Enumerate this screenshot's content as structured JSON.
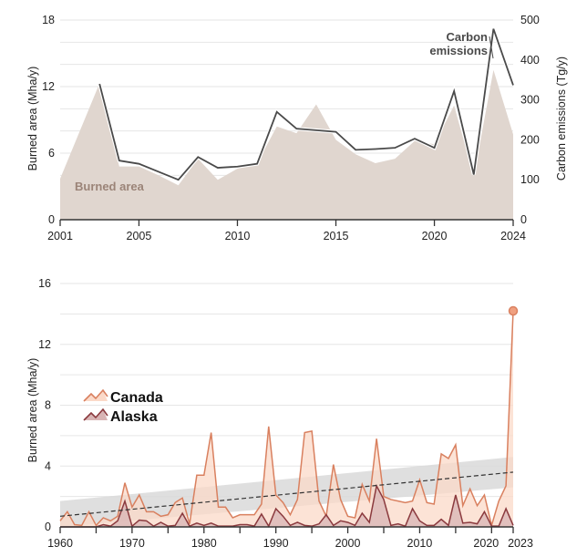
{
  "chart_data": [
    {
      "type": "area",
      "title": "",
      "xlabel": "",
      "ylabel": "Burned area (Mha/y)",
      "y2label": "Carbon emissions (Tg/y)",
      "xlim": [
        2001,
        2024
      ],
      "ylim": [
        0,
        18
      ],
      "y2lim": [
        0,
        500
      ],
      "x_ticks": [
        2001,
        2005,
        2010,
        2015,
        2020,
        2024
      ],
      "y_ticks": [
        0,
        6,
        12,
        18
      ],
      "y2_ticks": [
        0,
        100,
        200,
        300,
        400,
        500
      ],
      "grid": true,
      "x": [
        2001,
        2002,
        2003,
        2004,
        2005,
        2006,
        2007,
        2008,
        2009,
        2010,
        2011,
        2012,
        2013,
        2014,
        2015,
        2016,
        2017,
        2018,
        2019,
        2020,
        2021,
        2022,
        2023,
        2024
      ],
      "series": [
        {
          "name": "Burned area",
          "axis": "left",
          "kind": "area",
          "color": "#e0d6cf",
          "label_color": "#9b8478",
          "values": [
            3.7,
            8.0,
            12.3,
            4.8,
            4.8,
            4.0,
            3.1,
            5.5,
            3.6,
            4.6,
            5.1,
            8.4,
            7.8,
            10.4,
            7.2,
            5.9,
            5.1,
            5.5,
            7.1,
            6.8,
            10.3,
            3.9,
            13.5,
            7.7
          ]
        },
        {
          "name": "Carbon emissions",
          "axis": "right",
          "kind": "line",
          "color": "#4a4a4a",
          "x": [
            2003,
            2004,
            2005,
            2006,
            2007,
            2008,
            2009,
            2010,
            2011,
            2012,
            2013,
            2014,
            2015,
            2016,
            2017,
            2018,
            2019,
            2020,
            2021,
            2022,
            2023,
            2024
          ],
          "values": [
            340,
            148,
            140,
            120,
            100,
            157,
            130,
            133,
            140,
            270,
            228,
            224,
            220,
            175,
            177,
            180,
            203,
            180,
            322,
            113,
            478,
            337
          ]
        }
      ],
      "annotations": [
        {
          "text": "Burned area",
          "series": "Burned area"
        },
        {
          "text_lines": [
            "Carbon",
            "emissions"
          ],
          "series": "Carbon emissions"
        }
      ]
    },
    {
      "type": "area",
      "title": "",
      "xlabel": "",
      "ylabel": "Burned area (Mha/y)",
      "xlim": [
        1960,
        2023
      ],
      "ylim": [
        0,
        16
      ],
      "x_ticks": [
        1960,
        1970,
        1980,
        1990,
        2000,
        2010,
        2020,
        2023
      ],
      "x_minor_ticks": [
        1965,
        1975,
        1985,
        1995,
        2005,
        2015
      ],
      "y_ticks": [
        0,
        4,
        8,
        12,
        16
      ],
      "grid": true,
      "legend": {
        "placement": "middle-left",
        "entries": [
          "Canada",
          "Alaska"
        ]
      },
      "x": [
        1960,
        1961,
        1962,
        1963,
        1964,
        1965,
        1966,
        1967,
        1968,
        1969,
        1970,
        1971,
        1972,
        1973,
        1974,
        1975,
        1976,
        1977,
        1978,
        1979,
        1980,
        1981,
        1982,
        1983,
        1984,
        1985,
        1986,
        1987,
        1988,
        1989,
        1990,
        1991,
        1992,
        1993,
        1994,
        1995,
        1996,
        1997,
        1998,
        1999,
        2000,
        2001,
        2002,
        2003,
        2004,
        2005,
        2006,
        2007,
        2008,
        2009,
        2010,
        2011,
        2012,
        2013,
        2014,
        2015,
        2016,
        2017,
        2018,
        2019,
        2020,
        2021,
        2022,
        2023
      ],
      "series": [
        {
          "name": "Canada",
          "color": "#d9805f",
          "fill": "#fbd9c8",
          "values": [
            0.4,
            1.0,
            0.15,
            0.1,
            1.0,
            0.1,
            0.6,
            0.4,
            0.7,
            2.9,
            1.3,
            2.1,
            1.0,
            1.0,
            0.7,
            0.8,
            1.6,
            1.9,
            0.2,
            3.4,
            3.4,
            6.2,
            1.3,
            1.3,
            0.6,
            0.8,
            0.8,
            0.8,
            1.5,
            6.6,
            2.1,
            1.6,
            0.8,
            1.8,
            6.2,
            6.3,
            1.7,
            0.7,
            4.1,
            1.8,
            0.7,
            0.6,
            2.8,
            1.7,
            5.8,
            2.0,
            1.8,
            1.7,
            1.6,
            1.7,
            3.1,
            1.6,
            1.5,
            4.8,
            4.5,
            5.4,
            1.4,
            2.5,
            1.4,
            2.1,
            0.1,
            1.7,
            2.7,
            14.2
          ]
        },
        {
          "name": "Alaska",
          "color": "#8b3a3e",
          "fill": "#d8b4b4",
          "values": [
            0,
            0,
            0,
            0,
            0,
            0,
            0.15,
            0.05,
            0.4,
            1.7,
            0.05,
            0.45,
            0.4,
            0.05,
            0.3,
            0.05,
            0.1,
            0.9,
            0.05,
            0.25,
            0.1,
            0.25,
            0.05,
            0.05,
            0.05,
            0.15,
            0.15,
            0.05,
            0.85,
            0.05,
            1.2,
            0.7,
            0.1,
            0.3,
            0.1,
            0.05,
            0.2,
            0.8,
            0.1,
            0.4,
            0.3,
            0.1,
            0.9,
            0.3,
            2.7,
            1.8,
            0.1,
            0.2,
            0.05,
            1.2,
            0.4,
            0.1,
            0.1,
            0.5,
            0.1,
            2.1,
            0.25,
            0.3,
            0.2,
            1.0,
            0.05,
            0.05,
            1.2,
            0.1
          ]
        }
      ],
      "trend": {
        "name": "Canada trend",
        "style": "dashed",
        "color": "#333333",
        "start": {
          "x": 1960,
          "y": 0.7
        },
        "end": {
          "x": 2023,
          "y": 3.6
        },
        "band_color": "#d9d9d9",
        "band_start": [
          0.0,
          1.7
        ],
        "band_end": [
          2.6,
          4.6
        ]
      },
      "highlight_point": {
        "x": 2023,
        "y": 14.2,
        "series": "Canada"
      }
    }
  ]
}
